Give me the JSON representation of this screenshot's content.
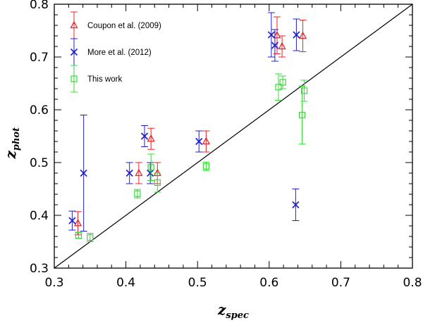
{
  "chart_data": {
    "type": "scatter",
    "title": "",
    "xlabel": "z",
    "xlabel_sub": "spec",
    "ylabel": "z",
    "ylabel_sub": "phot",
    "xlim": [
      0.3,
      0.8
    ],
    "ylim": [
      0.3,
      0.8
    ],
    "xticks": [
      "0.3",
      "0.4",
      "0.5",
      "0.6",
      "0.7",
      "0.8"
    ],
    "yticks": [
      "0.3",
      "0.4",
      "0.5",
      "0.6",
      "0.7",
      "0.8"
    ],
    "reference_line": {
      "name": "one-to-one line",
      "x": [
        0.3,
        0.8
      ],
      "y": [
        0.3,
        0.8
      ]
    },
    "legend_position": "top-left",
    "series": [
      {
        "name": "Coupon et al. (2009)",
        "marker": "triangle",
        "color": "#e8242a",
        "points": [
          {
            "x": 0.333,
            "y": 0.385,
            "err": 0.022
          },
          {
            "x": 0.418,
            "y": 0.48,
            "err": 0.02
          },
          {
            "x": 0.435,
            "y": 0.545,
            "err": 0.02
          },
          {
            "x": 0.444,
            "y": 0.48,
            "err": 0.02
          },
          {
            "x": 0.512,
            "y": 0.54,
            "err": 0.02
          },
          {
            "x": 0.611,
            "y": 0.741,
            "err": 0.035
          },
          {
            "x": 0.618,
            "y": 0.72,
            "err": 0.02
          },
          {
            "x": 0.647,
            "y": 0.74,
            "err": 0.03
          }
        ]
      },
      {
        "name": "More et al. (2012)",
        "marker": "x",
        "color": "#1f1fc8",
        "points": [
          {
            "x": 0.325,
            "y": 0.39,
            "err": 0.018
          },
          {
            "x": 0.341,
            "y": 0.48,
            "err": 0.11
          },
          {
            "x": 0.405,
            "y": 0.48,
            "err": 0.02
          },
          {
            "x": 0.426,
            "y": 0.55,
            "err": 0.02
          },
          {
            "x": 0.434,
            "y": 0.48,
            "err": 0.02
          },
          {
            "x": 0.502,
            "y": 0.54,
            "err": 0.02
          },
          {
            "x": 0.603,
            "y": 0.742,
            "err": 0.042
          },
          {
            "x": 0.608,
            "y": 0.722,
            "err": 0.03
          },
          {
            "x": 0.637,
            "y": 0.42,
            "err": 0.03
          },
          {
            "x": 0.638,
            "y": 0.742,
            "err": 0.03
          }
        ]
      },
      {
        "name": "This work",
        "marker": "square",
        "color": "#33dd33",
        "points": [
          {
            "x": 0.334,
            "y": 0.362,
            "err": 0.006
          },
          {
            "x": 0.35,
            "y": 0.358,
            "err": 0.008
          },
          {
            "x": 0.416,
            "y": 0.441,
            "err": 0.008
          },
          {
            "x": 0.435,
            "y": 0.491,
            "err": 0.025
          },
          {
            "x": 0.444,
            "y": 0.462,
            "err": 0.018
          },
          {
            "x": 0.512,
            "y": 0.493,
            "err": 0.008
          },
          {
            "x": 0.613,
            "y": 0.643,
            "err": 0.025
          },
          {
            "x": 0.619,
            "y": 0.652,
            "err": 0.012
          },
          {
            "x": 0.646,
            "y": 0.59,
            "err": 0.055
          },
          {
            "x": 0.649,
            "y": 0.636,
            "err": 0.02
          }
        ]
      }
    ]
  }
}
